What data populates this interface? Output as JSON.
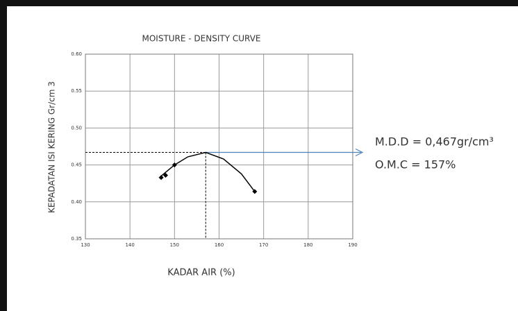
{
  "chart_data": {
    "type": "line",
    "title": "MOISTURE - DENSITY CURVE",
    "x_label": "KADAR AIR (%)",
    "y_label": "KEPADATAN ISI KERING Gr/cm 3",
    "xlim": [
      130,
      190
    ],
    "xticks": [
      130,
      140,
      150,
      160,
      170,
      180,
      190
    ],
    "ylim": [
      0.35,
      0.6
    ],
    "yticks": [
      {
        "value": 0.35,
        "label": "0.35"
      },
      {
        "value": 0.4,
        "label": "0.40"
      },
      {
        "value": 0.45,
        "label": "0.45"
      },
      {
        "value": 0.5,
        "label": "0.50"
      },
      {
        "value": 0.55,
        "label": "0.55"
      },
      {
        "value": 0.6,
        "label": "0.60"
      }
    ],
    "grid": true,
    "points": {
      "color": "#000000",
      "x": [
        147,
        148,
        150,
        168
      ],
      "y": [
        0.433,
        0.436,
        0.45,
        0.414
      ]
    },
    "curve": {
      "color": "#000000",
      "x": [
        147,
        150,
        153,
        157,
        161,
        165,
        168
      ],
      "y": [
        0.435,
        0.45,
        0.461,
        0.467,
        0.458,
        0.438,
        0.414
      ]
    },
    "mdd": 0.467,
    "omc": 157,
    "arrow_color": "#4f81bd",
    "annotations": [
      "M.D.D = 0,467gr/cm³",
      "O.M.C = 157%"
    ]
  }
}
